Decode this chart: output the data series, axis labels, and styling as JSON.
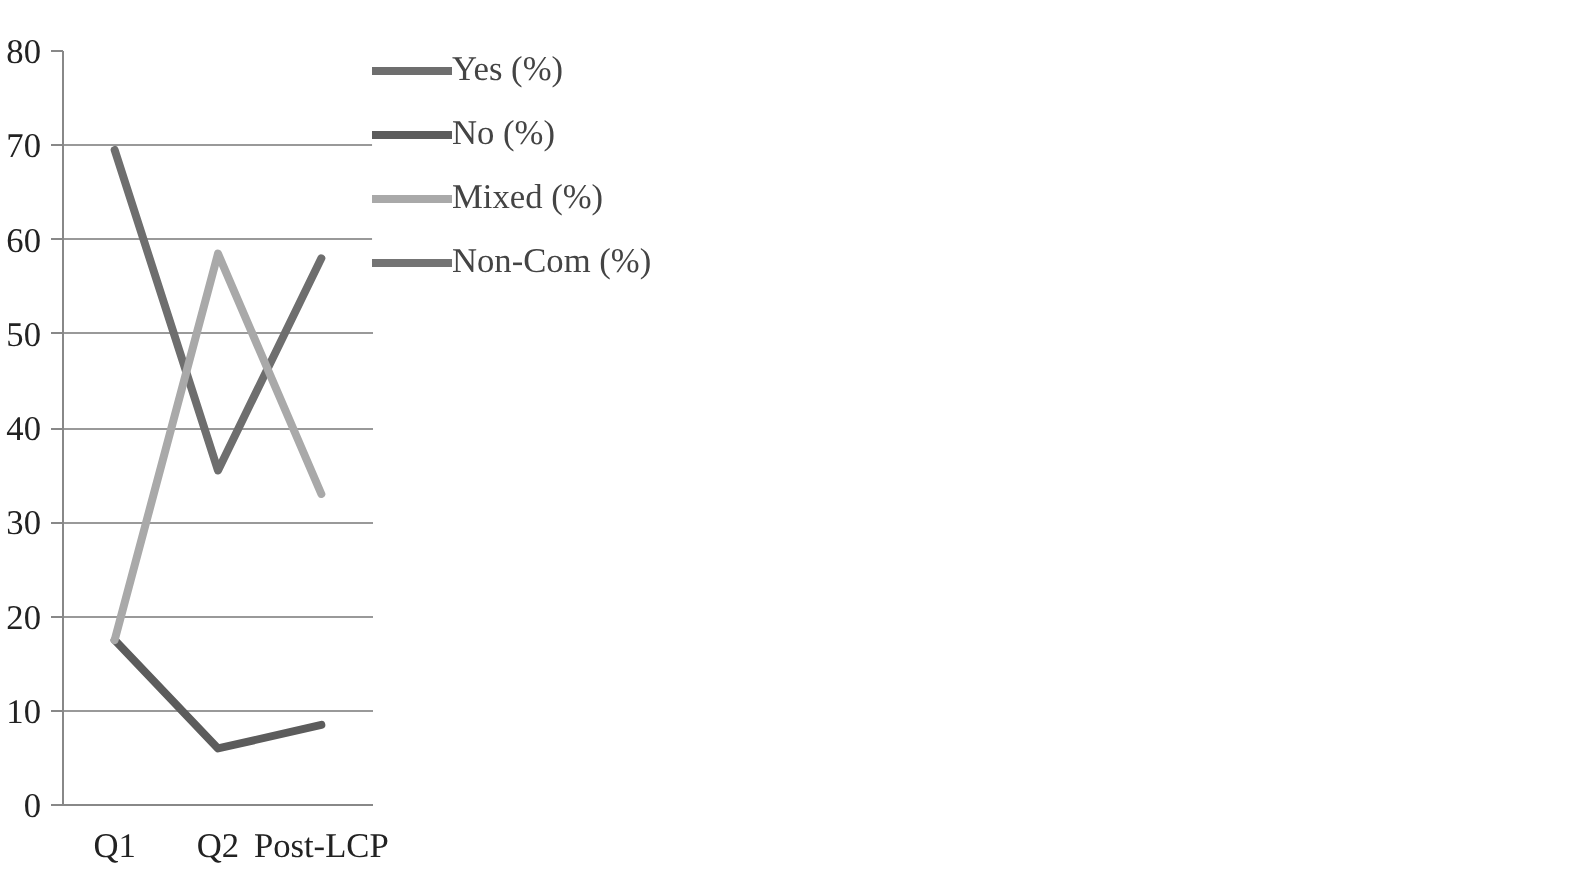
{
  "chart_data": {
    "type": "line",
    "categories": [
      "Q1",
      "Q2",
      "Post-LCP"
    ],
    "series": [
      {
        "name": "Yes (%)",
        "color": "#6e6e6e",
        "values": [
          69.5,
          35.5,
          58
        ]
      },
      {
        "name": "No (%)",
        "color": "#5c5c5c",
        "values": [
          17.5,
          6,
          8.5
        ]
      },
      {
        "name": "Mixed (%)",
        "color": "#a9a9a9",
        "values": [
          17.5,
          58.5,
          33
        ]
      },
      {
        "name": "Non-Com (%)",
        "color": "#747474",
        "values": [
          null,
          null,
          null
        ]
      }
    ],
    "ylim": [
      0,
      80
    ],
    "yticks": [
      0,
      10,
      20,
      30,
      40,
      50,
      60,
      70,
      80
    ],
    "grid": "y",
    "legend": "right",
    "marker": "none",
    "line_style": "solid"
  }
}
